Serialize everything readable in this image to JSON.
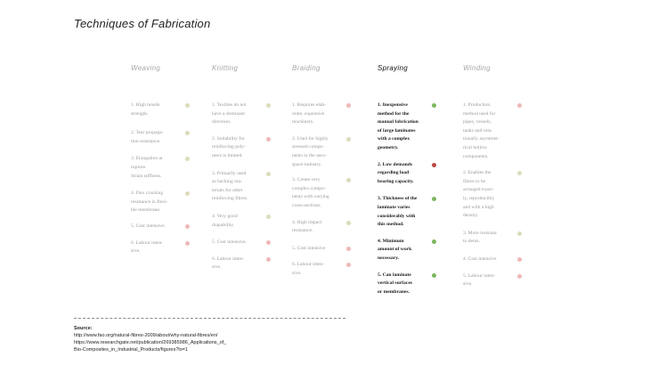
{
  "title": "Techniques of Fabrication",
  "columns": [
    {
      "heading": "Weaving",
      "active": false,
      "items": [
        {
          "text": "1. High tensile\nstrength.",
          "color": "#dcdcbc",
          "gap": 12
        },
        {
          "text": "2. Tear propaga-\ntion resistance.",
          "color": "#dcdcbc",
          "gap": 10
        },
        {
          "text": "3. Elongation at\nrupture.\nStrain stiffness.",
          "color": "#dcdcbc",
          "gap": 10
        },
        {
          "text": "4. Flex cracking\nresistance in flexi-\nble membrane.",
          "color": "#dcdcbc",
          "gap": 8
        },
        {
          "text": "5. Cost intensive.",
          "color": "#efb8b8",
          "gap": 9
        },
        {
          "text": "6. Labour inten-\nsive.",
          "color": "#efb8b8",
          "gap": 0
        }
      ]
    },
    {
      "heading": "Knitting",
      "active": false,
      "items": [
        {
          "text": "1. Textiles do not\nhave a dominant\ndirection.",
          "color": "#dcdcbc",
          "gap": 9
        },
        {
          "text": "2. Suitability for\nreinforcing poly-\nmers is limited.",
          "color": "#efb8b8",
          "gap": 10
        },
        {
          "text": "3. Primarily used\nas backing ma-\nterials for other\nreinforcing fibres.",
          "color": "#dcdcbc",
          "gap": 10
        },
        {
          "text": "4. Very good\ndrapability.",
          "color": "#dcdcbc",
          "gap": 10
        },
        {
          "text": "5. Cost intensive.",
          "color": "#efb8b8",
          "gap": 9
        },
        {
          "text": "6. Labour inten-\nsive.",
          "color": "#efb8b8",
          "gap": 0
        }
      ]
    },
    {
      "heading": "Braiding",
      "active": false,
      "items": [
        {
          "text": "1. Requires elab-\norate, expensive\nmachinery.",
          "color": "#efb8b8",
          "gap": 9
        },
        {
          "text": "2. Used for highly\nstressed compo-\nnents in the aero-\nspace industry.",
          "color": "#dcdcbc",
          "gap": 8
        },
        {
          "text": "3. Create very\ncomplex compo-\nnents with varying\ncross-sections.",
          "color": "#dcdcbc",
          "gap": 9
        },
        {
          "text": "4. High impact\nresistance.",
          "color": "#dcdcbc",
          "gap": 10
        },
        {
          "text": "5. Cost intensive",
          "color": "#efb8b8",
          "gap": 9
        },
        {
          "text": "6. Labour inten-\nsive.",
          "color": "#efb8b8",
          "gap": 0
        }
      ]
    },
    {
      "heading": "Spraying",
      "active": true,
      "items": [
        {
          "text": "1. Inexpensive\nmethod for the\nmanual fabrication\nof large laminates\nwith a complex\ngeometry.",
          "color": "#7db55e",
          "gap": 9
        },
        {
          "text": "2. Low demands\nregarding load\nbearing capacity.",
          "color": "#b8473f",
          "gap": 10
        },
        {
          "text": "3. Thickness of the\nlaminate varies\nconsiderably with\nthis method.",
          "color": "#7db55e",
          "gap": 9
        },
        {
          "text": "4. Minimum\namount of work\nnecessary.",
          "color": "#7db55e",
          "gap": 9
        },
        {
          "text": "5. Can laminate\nvertical surfaces\nor membranes.",
          "color": "#7db55e",
          "gap": 0
        }
      ]
    },
    {
      "heading": "Winding",
      "active": false,
      "items": [
        {
          "text": "1. Production\nmethod used for\npipes, vessels,\ntanks and rota-\ntionally asymmet-\nrical hollow\ncomponents.",
          "color": "#efb8b8",
          "gap": 9
        },
        {
          "text": "2. Enables the\nfibres to be\narranged exact-\nly, reproducibly\nand with a high\ndensity.",
          "color": "#dcdcbc",
          "gap": 10
        },
        {
          "text": "3. More resistant\nto dents.",
          "color": "#dcdcbc",
          "gap": 10
        },
        {
          "text": "4. Cost intensive",
          "color": "#efb8b8",
          "gap": 9
        },
        {
          "text": "5. Labour inten-\nsive.",
          "color": "#efb8b8",
          "gap": 0
        }
      ]
    }
  ],
  "source": {
    "label": "Source:",
    "lines": [
      "http://www.fao.org/natural-fibres-2009/about/why-natural-fibres/en/",
      "https://www.researchgate.net/publication/269385986_Applications_of_",
      "Bio-Composites_in_Industrial_Products/figures?lo=1"
    ]
  }
}
